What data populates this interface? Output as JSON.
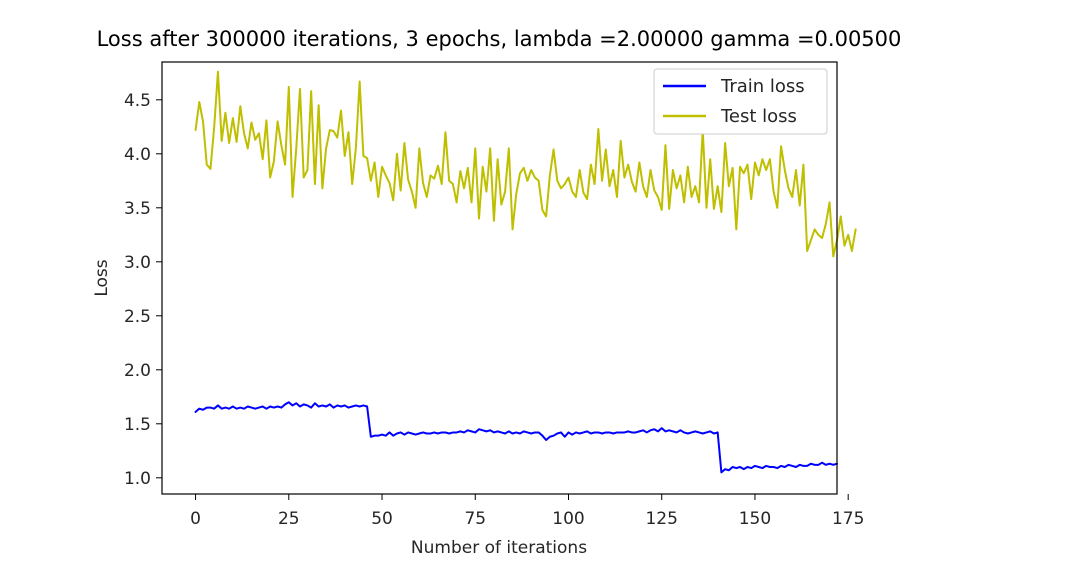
{
  "chart_data": {
    "type": "line",
    "title": "Loss after 300000 iterations, 3 epochs, lambda =2.00000 gamma =0.00500",
    "xlabel": "Number of iterations",
    "ylabel": "Loss",
    "xlim": [
      -9,
      172
    ],
    "ylim": [
      0.85,
      4.85
    ],
    "xticks": [
      0,
      25,
      50,
      75,
      100,
      125,
      150,
      175
    ],
    "yticks": [
      1.0,
      1.5,
      2.0,
      2.5,
      3.0,
      3.5,
      4.0,
      4.5
    ],
    "xtick_labels": [
      "0",
      "25",
      "50",
      "75",
      "100",
      "125",
      "150",
      "175"
    ],
    "ytick_labels": [
      "1.0",
      "1.5",
      "2.0",
      "2.5",
      "3.0",
      "3.5",
      "4.0",
      "4.5"
    ],
    "grid": false,
    "legend_position": "top-right",
    "series": [
      {
        "name": "Train loss",
        "color": "#0000ff",
        "values": [
          1.61,
          1.64,
          1.63,
          1.65,
          1.65,
          1.64,
          1.67,
          1.64,
          1.65,
          1.64,
          1.66,
          1.64,
          1.65,
          1.64,
          1.66,
          1.65,
          1.64,
          1.65,
          1.66,
          1.64,
          1.66,
          1.65,
          1.66,
          1.65,
          1.68,
          1.7,
          1.67,
          1.69,
          1.66,
          1.68,
          1.67,
          1.65,
          1.69,
          1.66,
          1.67,
          1.66,
          1.68,
          1.65,
          1.67,
          1.66,
          1.67,
          1.65,
          1.66,
          1.67,
          1.66,
          1.67,
          1.66,
          1.38,
          1.39,
          1.39,
          1.4,
          1.39,
          1.42,
          1.39,
          1.41,
          1.42,
          1.4,
          1.42,
          1.41,
          1.4,
          1.41,
          1.42,
          1.41,
          1.41,
          1.42,
          1.41,
          1.42,
          1.42,
          1.41,
          1.42,
          1.42,
          1.43,
          1.42,
          1.44,
          1.43,
          1.42,
          1.45,
          1.44,
          1.43,
          1.44,
          1.42,
          1.43,
          1.42,
          1.41,
          1.43,
          1.41,
          1.42,
          1.41,
          1.43,
          1.42,
          1.41,
          1.42,
          1.42,
          1.39,
          1.35,
          1.38,
          1.39,
          1.41,
          1.42,
          1.38,
          1.42,
          1.4,
          1.42,
          1.41,
          1.42,
          1.43,
          1.41,
          1.42,
          1.42,
          1.41,
          1.42,
          1.42,
          1.41,
          1.42,
          1.42,
          1.42,
          1.43,
          1.42,
          1.42,
          1.43,
          1.44,
          1.42,
          1.44,
          1.45,
          1.43,
          1.46,
          1.43,
          1.44,
          1.43,
          1.42,
          1.44,
          1.42,
          1.41,
          1.42,
          1.43,
          1.42,
          1.41,
          1.42,
          1.43,
          1.41,
          1.42,
          1.05,
          1.08,
          1.07,
          1.1,
          1.09,
          1.1,
          1.08,
          1.1,
          1.09,
          1.11,
          1.1,
          1.09,
          1.11,
          1.1,
          1.1,
          1.09,
          1.11,
          1.1,
          1.12,
          1.11,
          1.1,
          1.12,
          1.11,
          1.11,
          1.13,
          1.12,
          1.12,
          1.14,
          1.12,
          1.13,
          1.12,
          1.13
        ]
      },
      {
        "name": "Test loss",
        "color": "#bfbf00",
        "values": [
          4.22,
          4.48,
          4.3,
          3.9,
          3.86,
          4.25,
          4.76,
          4.12,
          4.38,
          4.1,
          4.33,
          4.11,
          4.44,
          4.19,
          4.05,
          4.29,
          4.13,
          4.19,
          3.95,
          4.31,
          3.78,
          3.93,
          4.3,
          4.08,
          3.9,
          4.62,
          3.6,
          4.05,
          4.6,
          3.78,
          3.85,
          4.58,
          3.72,
          4.45,
          3.68,
          4.05,
          4.22,
          4.21,
          4.15,
          4.4,
          3.98,
          4.2,
          3.72,
          4.06,
          4.67,
          3.98,
          3.96,
          3.75,
          3.92,
          3.6,
          3.88,
          3.8,
          3.73,
          3.57,
          4.0,
          3.66,
          4.1,
          3.76,
          3.65,
          3.5,
          4.05,
          3.73,
          3.6,
          3.8,
          3.77,
          3.89,
          3.72,
          4.2,
          3.75,
          3.72,
          3.55,
          3.84,
          3.68,
          3.87,
          3.55,
          4.05,
          3.4,
          3.88,
          3.65,
          4.05,
          3.38,
          3.95,
          3.53,
          3.65,
          4.05,
          3.3,
          3.63,
          3.82,
          3.87,
          3.75,
          3.85,
          3.78,
          3.75,
          3.48,
          3.42,
          3.8,
          4.04,
          3.75,
          3.68,
          3.72,
          3.78,
          3.65,
          3.6,
          3.85,
          3.64,
          3.58,
          3.9,
          3.72,
          4.23,
          3.75,
          4.04,
          3.7,
          3.85,
          3.6,
          4.12,
          3.78,
          3.9,
          3.74,
          3.65,
          3.92,
          3.7,
          3.6,
          3.85,
          3.66,
          3.6,
          3.48,
          4.08,
          3.49,
          3.85,
          3.68,
          3.8,
          3.55,
          3.88,
          3.6,
          3.7,
          3.55,
          4.22,
          3.5,
          3.95,
          3.49,
          3.7,
          3.46,
          4.1,
          3.7,
          3.87,
          3.3,
          3.88,
          3.82,
          3.9,
          3.58,
          3.92,
          3.8,
          3.95,
          3.85,
          3.95,
          3.65,
          3.5,
          4.07,
          3.85,
          3.68,
          3.6,
          3.85,
          3.52,
          3.9,
          3.1,
          3.2,
          3.3,
          3.25,
          3.22,
          3.35,
          3.55,
          3.05,
          3.2,
          3.42,
          3.15,
          3.25,
          3.1,
          3.3
        ]
      }
    ]
  }
}
